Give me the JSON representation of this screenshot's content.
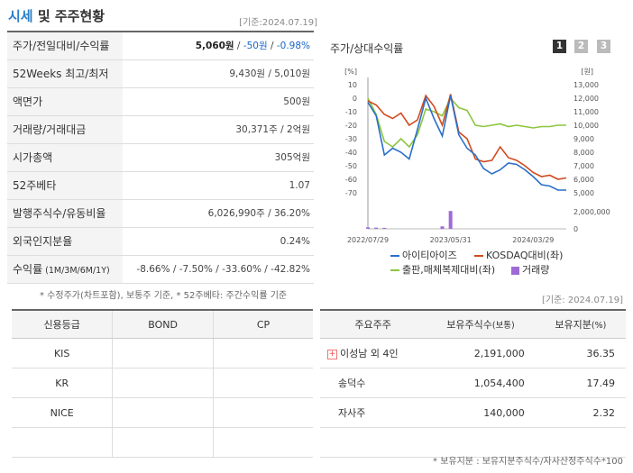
{
  "header": {
    "title_a": "시세",
    "title_b": " 및 주주현황",
    "date": "[기준:2024.07.19]"
  },
  "stats": [
    {
      "label": "주가/전일대비/수익률",
      "v1": "5,060원",
      "v2": " / ",
      "v3": "-50원",
      "v4": " / ",
      "v5": "-0.98%"
    },
    {
      "label": "52Weeks 최고/최저",
      "value": "9,430원 / 5,010원"
    },
    {
      "label": "액면가",
      "value": "500원"
    },
    {
      "label": "거래량/거래대금",
      "value": "30,371주 / 2억원"
    },
    {
      "label": "시가총액",
      "value": "305억원"
    },
    {
      "label": "52주베타",
      "value": "1.07"
    },
    {
      "label": "발행주식수/유동비율",
      "value": "6,026,990주 / 36.20%"
    },
    {
      "label": "외국인지분율",
      "value": "0.24%"
    },
    {
      "label": "수익률",
      "label_small": " (1M/3M/6M/1Y)",
      "value": "-8.66% / -7.50% / -33.60% / -42.82%"
    }
  ],
  "notes": {
    "left": "* 수정주가(차트포함), 보통주 기준, * 52주베타: 주간수익률 기준",
    "right_date": "[기준: 2024.07.19]",
    "bottom": "* 보유지분 : 보유지분주식수/자사산정주식수*100"
  },
  "chart_panel": {
    "title": "주가/상대수익률",
    "buttons": [
      "1",
      "2",
      "3"
    ]
  },
  "chart_data": {
    "type": "line",
    "left_axis_unit": "[%]",
    "right_axis_unit": "[원]",
    "left_ticks": [
      "10",
      "0",
      "-10",
      "-20",
      "-30",
      "-40",
      "-50",
      "-60",
      "-70"
    ],
    "right_ticks": [
      "13,000",
      "12,000",
      "11,000",
      "10,000",
      "9,000",
      "8,000",
      "7,000",
      "6,000",
      "5,000"
    ],
    "volume_ticks": [
      "2,000,000",
      "0"
    ],
    "x_labels": [
      "2022/07/29",
      "2023/05/31",
      "2024/03/29"
    ],
    "ylim": [
      -70,
      10
    ],
    "x": [
      0,
      1,
      2,
      3,
      4,
      5,
      6,
      7,
      8,
      9,
      10,
      11,
      12,
      13,
      14,
      15,
      16,
      17,
      18,
      19,
      20,
      21,
      22,
      23,
      24
    ],
    "series": [
      {
        "name": "아이티아이즈",
        "color": "#2a6fc9",
        "values": [
          -3,
          -13,
          -42,
          -37,
          -40,
          -45,
          -23,
          0,
          -15,
          -28,
          2,
          -27,
          -37,
          -42,
          -52,
          -56,
          -53,
          -48,
          -49,
          -53,
          -58,
          -64,
          -65,
          -68,
          -68
        ]
      },
      {
        "name": "KOSDAQ대비(좌)",
        "color": "#d24a1e",
        "values": [
          -2,
          -5,
          -12,
          -15,
          -11,
          -20,
          -16,
          2,
          -6,
          -20,
          3,
          -25,
          -30,
          -45,
          -47,
          -46,
          -36,
          -44,
          -46,
          -50,
          -55,
          -58,
          -57,
          -60,
          -59
        ]
      },
      {
        "name": "출판,매체복제대비(좌)",
        "color": "#8cc63e",
        "values": [
          0,
          -12,
          -32,
          -36,
          -30,
          -36,
          -27,
          -8,
          -10,
          -13,
          0,
          -7,
          -9,
          -20,
          -21,
          -20,
          -19,
          -21,
          -20,
          -21,
          -22,
          -21,
          -21,
          -20,
          -20
        ]
      }
    ],
    "volume": {
      "name": "거래량",
      "color": "#9e6bd6",
      "values": [
        150000,
        120000,
        100000,
        0,
        0,
        0,
        0,
        0,
        0,
        250000,
        1800000,
        0,
        0,
        0,
        0,
        0,
        0,
        0,
        0,
        0,
        0,
        0,
        0,
        0,
        0
      ]
    }
  },
  "credit": {
    "headers": [
      "신용등급",
      "BOND",
      "CP"
    ],
    "rows": [
      [
        "KIS",
        "",
        ""
      ],
      [
        "KR",
        "",
        ""
      ],
      [
        "NICE",
        "",
        ""
      ],
      [
        "",
        "",
        ""
      ]
    ]
  },
  "holders": {
    "headers": [
      "주요주주",
      "보유주식수",
      "(보통)",
      "보유지분",
      "(%)"
    ],
    "rows": [
      {
        "name": "이성남 외 4인",
        "shares": "2,191,000",
        "pct": "36.35",
        "expand": "+"
      },
      {
        "name": "송덕수",
        "shares": "1,054,400",
        "pct": "17.49"
      },
      {
        "name": "자사주",
        "shares": "140,000",
        "pct": "2.32"
      },
      {
        "name": "",
        "shares": "",
        "pct": ""
      }
    ]
  }
}
